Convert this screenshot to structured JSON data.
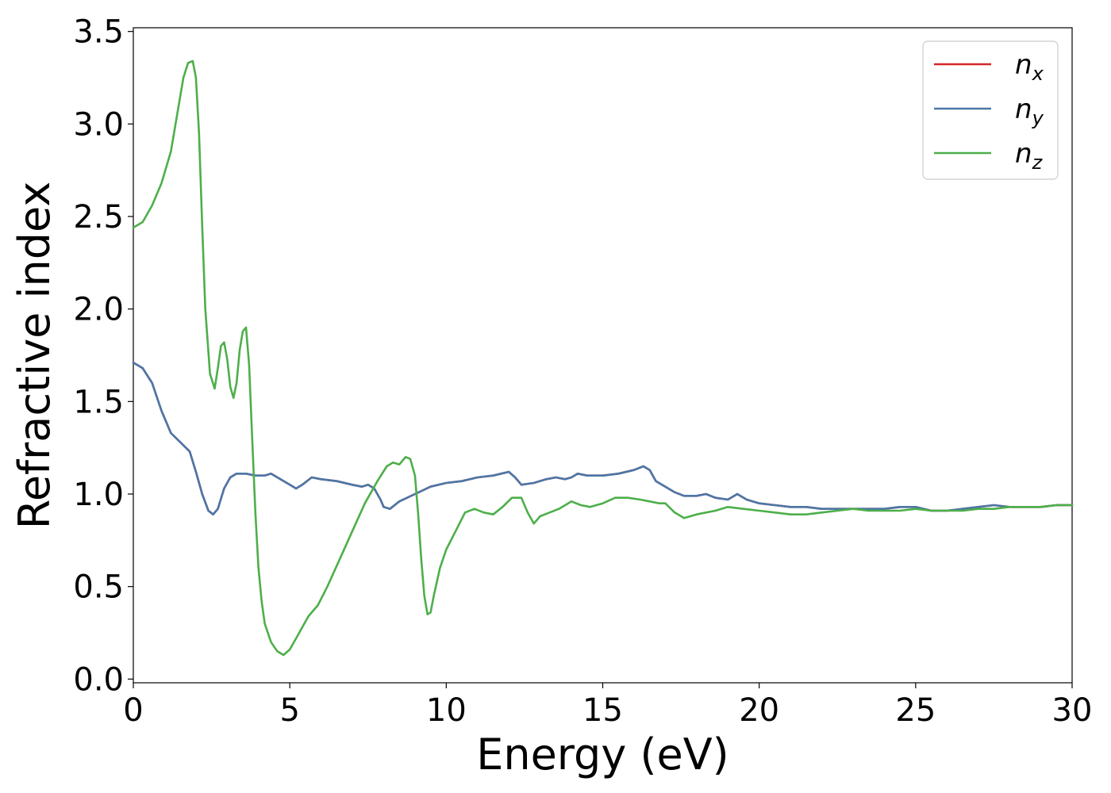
{
  "chart_data": {
    "type": "line",
    "title": "",
    "xlabel": "Energy (eV)",
    "ylabel": "Refractive index",
    "xlim": [
      0,
      30
    ],
    "ylim": [
      -0.02,
      3.52
    ],
    "xticks": [
      0,
      5,
      10,
      15,
      20,
      25,
      30
    ],
    "yticks": [
      0.0,
      0.5,
      1.0,
      1.5,
      2.0,
      2.5,
      3.0,
      3.5
    ],
    "xtick_labels": [
      "0",
      "5",
      "10",
      "15",
      "20",
      "25",
      "30"
    ],
    "ytick_labels": [
      "0.0",
      "0.5",
      "1.0",
      "1.5",
      "2.0",
      "2.5",
      "3.0",
      "3.5"
    ],
    "grid": false,
    "legend_position": "top-right",
    "series": [
      {
        "name": "n",
        "subscript": "x",
        "color": "#d62728",
        "x": [
          0,
          0.3,
          0.6,
          0.9,
          1.2,
          1.5,
          1.8,
          2.0,
          2.2,
          2.4,
          2.55,
          2.7,
          2.9,
          3.1,
          3.3,
          3.6,
          3.9,
          4.2,
          4.4,
          4.7,
          5.0,
          5.2,
          5.4,
          5.7,
          6.0,
          6.5,
          7.0,
          7.3,
          7.5,
          7.7,
          7.9,
          8.0,
          8.2,
          8.5,
          9.0,
          9.5,
          10.0,
          10.5,
          11.0,
          11.5,
          12.0,
          12.2,
          12.4,
          12.8,
          13.2,
          13.5,
          13.8,
          14.0,
          14.2,
          14.5,
          15.0,
          15.5,
          16.0,
          16.3,
          16.5,
          16.7,
          17.0,
          17.3,
          17.6,
          18.0,
          18.3,
          18.6,
          19.0,
          19.3,
          19.6,
          20.0,
          20.5,
          21.0,
          21.5,
          22.0,
          22.5,
          23.0,
          23.5,
          24.0,
          24.5,
          25.0,
          25.5,
          26.0,
          26.5,
          27.0,
          27.5,
          28.0,
          28.5,
          29.0,
          29.5,
          30.0
        ],
        "y": [
          1.71,
          1.68,
          1.6,
          1.45,
          1.33,
          1.28,
          1.23,
          1.12,
          1.0,
          0.91,
          0.89,
          0.92,
          1.03,
          1.09,
          1.11,
          1.11,
          1.1,
          1.1,
          1.11,
          1.08,
          1.05,
          1.03,
          1.05,
          1.09,
          1.08,
          1.07,
          1.05,
          1.04,
          1.05,
          1.03,
          0.97,
          0.93,
          0.92,
          0.96,
          1.0,
          1.04,
          1.06,
          1.07,
          1.09,
          1.1,
          1.12,
          1.09,
          1.05,
          1.06,
          1.08,
          1.09,
          1.08,
          1.09,
          1.11,
          1.1,
          1.1,
          1.11,
          1.13,
          1.15,
          1.13,
          1.07,
          1.04,
          1.01,
          0.99,
          0.99,
          1.0,
          0.98,
          0.97,
          1.0,
          0.97,
          0.95,
          0.94,
          0.93,
          0.93,
          0.92,
          0.92,
          0.92,
          0.92,
          0.92,
          0.93,
          0.93,
          0.91,
          0.91,
          0.92,
          0.93,
          0.94,
          0.93,
          0.93,
          0.93,
          0.94,
          0.94
        ]
      },
      {
        "name": "n",
        "subscript": "y",
        "color": "#4a77a8",
        "x": [
          0,
          0.3,
          0.6,
          0.9,
          1.2,
          1.5,
          1.8,
          2.0,
          2.2,
          2.4,
          2.55,
          2.7,
          2.9,
          3.1,
          3.3,
          3.6,
          3.9,
          4.2,
          4.4,
          4.7,
          5.0,
          5.2,
          5.4,
          5.7,
          6.0,
          6.5,
          7.0,
          7.3,
          7.5,
          7.7,
          7.9,
          8.0,
          8.2,
          8.5,
          9.0,
          9.5,
          10.0,
          10.5,
          11.0,
          11.5,
          12.0,
          12.2,
          12.4,
          12.8,
          13.2,
          13.5,
          13.8,
          14.0,
          14.2,
          14.5,
          15.0,
          15.5,
          16.0,
          16.3,
          16.5,
          16.7,
          17.0,
          17.3,
          17.6,
          18.0,
          18.3,
          18.6,
          19.0,
          19.3,
          19.6,
          20.0,
          20.5,
          21.0,
          21.5,
          22.0,
          22.5,
          23.0,
          23.5,
          24.0,
          24.5,
          25.0,
          25.5,
          26.0,
          26.5,
          27.0,
          27.5,
          28.0,
          28.5,
          29.0,
          29.5,
          30.0
        ],
        "y": [
          1.71,
          1.68,
          1.6,
          1.45,
          1.33,
          1.28,
          1.23,
          1.12,
          1.0,
          0.91,
          0.89,
          0.92,
          1.03,
          1.09,
          1.11,
          1.11,
          1.1,
          1.1,
          1.11,
          1.08,
          1.05,
          1.03,
          1.05,
          1.09,
          1.08,
          1.07,
          1.05,
          1.04,
          1.05,
          1.03,
          0.97,
          0.93,
          0.92,
          0.96,
          1.0,
          1.04,
          1.06,
          1.07,
          1.09,
          1.1,
          1.12,
          1.09,
          1.05,
          1.06,
          1.08,
          1.09,
          1.08,
          1.09,
          1.11,
          1.1,
          1.1,
          1.11,
          1.13,
          1.15,
          1.13,
          1.07,
          1.04,
          1.01,
          0.99,
          0.99,
          1.0,
          0.98,
          0.97,
          1.0,
          0.97,
          0.95,
          0.94,
          0.93,
          0.93,
          0.92,
          0.92,
          0.92,
          0.92,
          0.92,
          0.93,
          0.93,
          0.91,
          0.91,
          0.92,
          0.93,
          0.94,
          0.93,
          0.93,
          0.93,
          0.94,
          0.94
        ]
      },
      {
        "name": "n",
        "subscript": "z",
        "color": "#4daf4a",
        "x": [
          0,
          0.3,
          0.6,
          0.9,
          1.2,
          1.4,
          1.6,
          1.75,
          1.9,
          2.0,
          2.1,
          2.2,
          2.3,
          2.45,
          2.6,
          2.7,
          2.8,
          2.9,
          3.0,
          3.1,
          3.2,
          3.3,
          3.4,
          3.5,
          3.6,
          3.7,
          3.8,
          3.9,
          4.0,
          4.1,
          4.2,
          4.4,
          4.6,
          4.8,
          5.0,
          5.2,
          5.4,
          5.6,
          5.9,
          6.2,
          6.6,
          7.0,
          7.4,
          7.8,
          8.1,
          8.3,
          8.5,
          8.7,
          8.85,
          9.0,
          9.1,
          9.2,
          9.3,
          9.4,
          9.5,
          9.6,
          9.8,
          10.0,
          10.3,
          10.6,
          10.9,
          11.2,
          11.5,
          11.8,
          12.1,
          12.4,
          12.6,
          12.8,
          13.0,
          13.3,
          13.6,
          14.0,
          14.3,
          14.6,
          15.0,
          15.4,
          15.8,
          16.2,
          16.5,
          16.8,
          17.0,
          17.3,
          17.6,
          18.0,
          18.3,
          18.6,
          19.0,
          19.5,
          20.0,
          20.5,
          21.0,
          21.5,
          22.0,
          22.5,
          23.0,
          23.5,
          24.0,
          24.5,
          25.0,
          25.5,
          26.0,
          26.5,
          27.0,
          27.5,
          28.0,
          28.5,
          29.0,
          29.5,
          30.0
        ],
        "y": [
          2.44,
          2.47,
          2.56,
          2.68,
          2.85,
          3.05,
          3.25,
          3.33,
          3.34,
          3.25,
          2.95,
          2.45,
          2.0,
          1.65,
          1.57,
          1.68,
          1.8,
          1.82,
          1.73,
          1.58,
          1.52,
          1.6,
          1.78,
          1.88,
          1.9,
          1.7,
          1.3,
          0.9,
          0.6,
          0.42,
          0.3,
          0.2,
          0.15,
          0.13,
          0.16,
          0.22,
          0.28,
          0.34,
          0.4,
          0.5,
          0.65,
          0.8,
          0.95,
          1.07,
          1.15,
          1.17,
          1.16,
          1.2,
          1.19,
          1.1,
          0.9,
          0.65,
          0.45,
          0.35,
          0.36,
          0.45,
          0.6,
          0.7,
          0.8,
          0.9,
          0.92,
          0.9,
          0.89,
          0.93,
          0.98,
          0.98,
          0.9,
          0.84,
          0.88,
          0.9,
          0.92,
          0.96,
          0.94,
          0.93,
          0.95,
          0.98,
          0.98,
          0.97,
          0.96,
          0.95,
          0.95,
          0.9,
          0.87,
          0.89,
          0.9,
          0.91,
          0.93,
          0.92,
          0.91,
          0.9,
          0.89,
          0.89,
          0.9,
          0.91,
          0.92,
          0.91,
          0.91,
          0.91,
          0.92,
          0.91,
          0.91,
          0.91,
          0.92,
          0.92,
          0.93,
          0.93,
          0.93,
          0.94,
          0.94
        ]
      }
    ]
  }
}
